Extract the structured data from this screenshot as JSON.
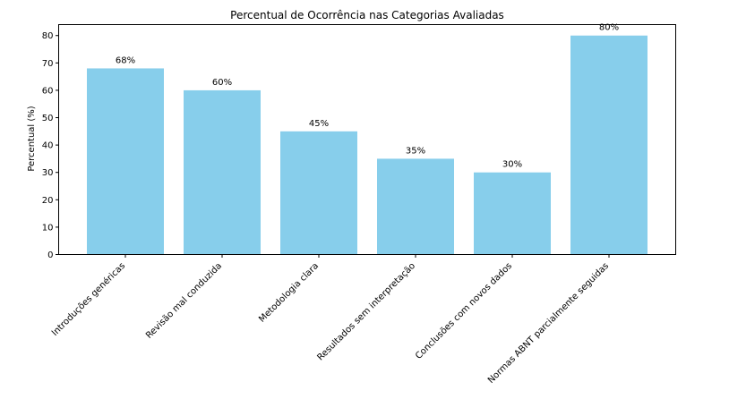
{
  "chart_data": {
    "type": "bar",
    "title": "Percentual de Ocorrência nas Categorias Avaliadas",
    "xlabel": "",
    "ylabel": "Percentual (%)",
    "categories": [
      "Introduções genéricas",
      "Revisão mal conduzida",
      "Metodologia clara",
      "Resultados sem interpretação",
      "Conclusões com novos dados",
      "Normas ABNT parcialmente seguidas"
    ],
    "values": [
      68,
      60,
      45,
      35,
      30,
      80
    ],
    "value_labels": [
      "68%",
      "60%",
      "45%",
      "35%",
      "30%",
      "80%"
    ],
    "yticks": [
      0,
      10,
      20,
      30,
      40,
      50,
      60,
      70,
      80
    ],
    "ylim": [
      0,
      84
    ],
    "bar_color": "#87CEEB",
    "grid": false
  }
}
